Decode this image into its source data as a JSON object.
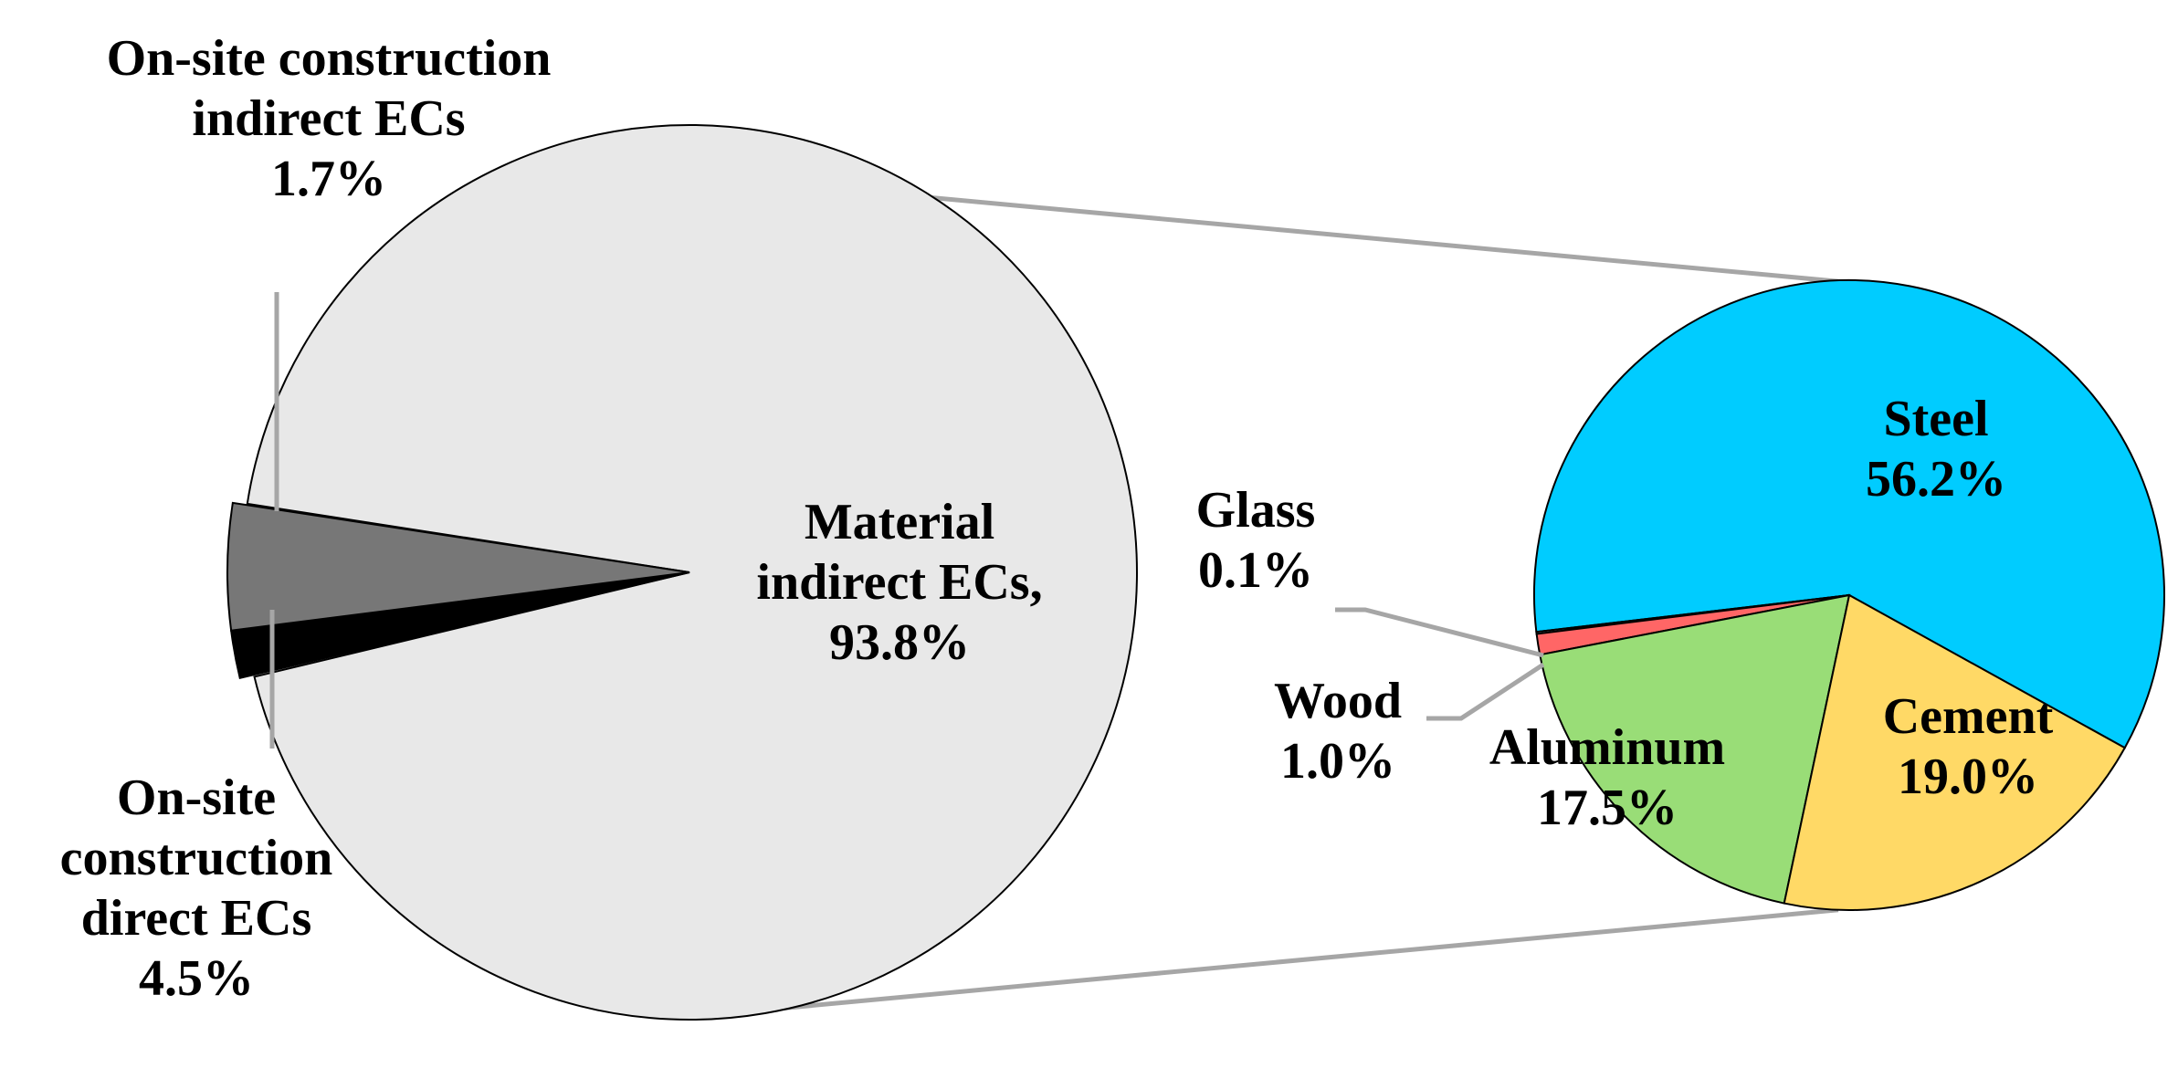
{
  "chart_data": [
    {
      "type": "pie",
      "title": "",
      "slices": [
        {
          "label_lines": [
            "Material",
            "indirect ECs,",
            "93.8%"
          ],
          "label": "Material indirect ECs",
          "value": 93.8,
          "color": "#E8E8E8"
        },
        {
          "label_lines": [
            "On-site",
            "construction",
            "direct ECs",
            "4.5%"
          ],
          "label": "On-site construction direct ECs",
          "value": 4.5,
          "color": "#777777"
        },
        {
          "label_lines": [
            "On-site construction",
            "indirect ECs",
            "1.7%"
          ],
          "label": "On-site construction indirect ECs",
          "value": 1.7,
          "color": "#000000"
        }
      ],
      "exploded_slice": "Material indirect ECs"
    },
    {
      "type": "pie",
      "title": "",
      "slices": [
        {
          "label_lines": [
            "Steel",
            "56.2%"
          ],
          "label": "Steel",
          "value": 56.2,
          "color": "#00CCFF"
        },
        {
          "label_lines": [
            "Cement",
            "19.0%"
          ],
          "label": "Cement",
          "value": 19.0,
          "color": "#FFD966"
        },
        {
          "label_lines": [
            "Aluminum",
            "17.5%"
          ],
          "label": "Aluminum",
          "value": 17.5,
          "color": "#99DD77"
        },
        {
          "label_lines": [
            "Wood",
            "1.0%"
          ],
          "label": "Wood",
          "value": 1.0,
          "color": "#FF6666"
        },
        {
          "label_lines": [
            "Glass",
            "0.1%"
          ],
          "label": "Glass",
          "value": 0.1,
          "color": "#BBBBBB"
        }
      ]
    }
  ],
  "colors": {
    "connector": "#A6A6A6",
    "outline": "#000000",
    "background": "#FFFFFF"
  }
}
